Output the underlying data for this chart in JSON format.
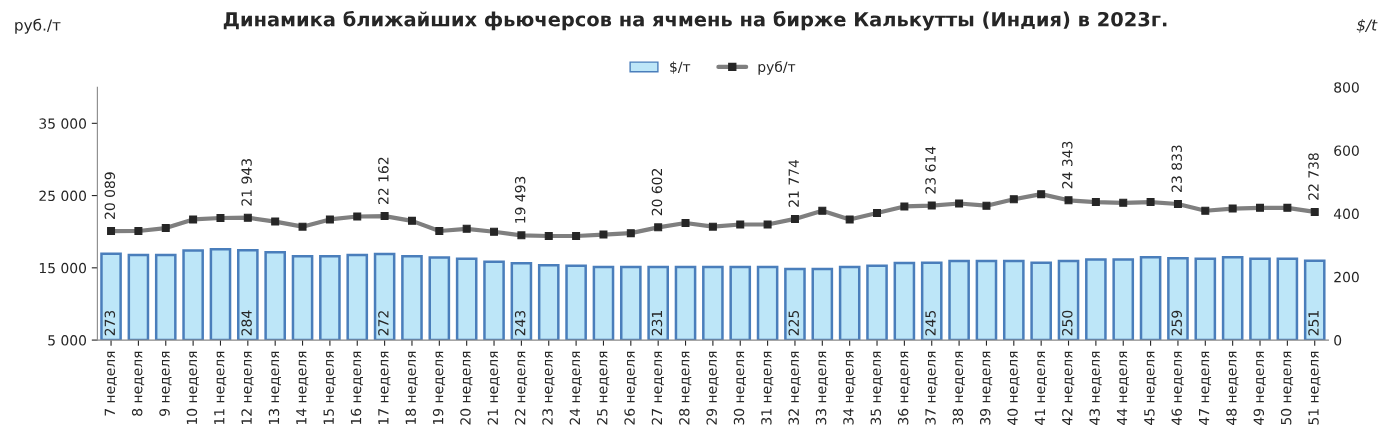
{
  "chart_data": {
    "type": "bar",
    "title": "Динамика ближайших фьючерсов на ячмень на бирже Калькутты (Индия) в 2023г.",
    "ylabel": "руб./т",
    "y2label": "$/t",
    "categories": [
      "7 неделя",
      "8 неделя",
      "9 неделя",
      "10 неделя",
      "11 неделя",
      "12 неделя",
      "13 неделя",
      "14 неделя",
      "15 неделя",
      "16 неделя",
      "17 неделя",
      "18 неделя",
      "19 неделя",
      "20 неделя",
      "21 неделя",
      "22 неделя",
      "23 неделя",
      "24 неделя",
      "25 неделя",
      "26 неделя",
      "27 неделя",
      "28 неделя",
      "29 неделя",
      "30 неделя",
      "31 неделя",
      "32 неделя",
      "33 неделя",
      "34 неделя",
      "35 неделя",
      "36 неделя",
      "37 неделя",
      "38 неделя",
      "39 неделя",
      "40 неделя",
      "41 неделя",
      "42 неделя",
      "43 неделя",
      "44 неделя",
      "45 неделя",
      "46 неделя",
      "47 неделя",
      "48 неделя",
      "49 неделя",
      "50 неделя",
      "51 неделя"
    ],
    "series": [
      {
        "name": "$/т",
        "axis": "y2",
        "color": "#bde6f8",
        "values": [
          273,
          269,
          269,
          283,
          287,
          284,
          278,
          265,
          265,
          269,
          272,
          265,
          261,
          257,
          248,
          243,
          237,
          235,
          231,
          231,
          231,
          231,
          231,
          231,
          231,
          225,
          225,
          231,
          235,
          244,
          245,
          250,
          250,
          250,
          245,
          250,
          255,
          255,
          262,
          259,
          257,
          262,
          257,
          257,
          251
        ],
        "value_labels": [
          "273",
          null,
          null,
          null,
          null,
          "284",
          null,
          null,
          null,
          null,
          "272",
          null,
          null,
          null,
          null,
          "243",
          null,
          null,
          null,
          null,
          "231",
          null,
          null,
          null,
          null,
          "225",
          null,
          null,
          null,
          null,
          "245",
          null,
          null,
          null,
          null,
          "250",
          null,
          null,
          null,
          "259",
          null,
          null,
          null,
          null,
          "251"
        ]
      },
      {
        "name": "руб/т",
        "type": "line",
        "color": "#7f7f7f",
        "values": [
          20089,
          20100,
          20500,
          21700,
          21900,
          21943,
          21400,
          20700,
          21700,
          22100,
          22162,
          21500,
          20100,
          20400,
          20000,
          19493,
          19400,
          19400,
          19600,
          19800,
          20602,
          21200,
          20700,
          21000,
          21000,
          21774,
          22900,
          21700,
          22600,
          23500,
          23614,
          23900,
          23600,
          24500,
          25200,
          24343,
          24100,
          24000,
          24100,
          23833,
          22900,
          23200,
          23300,
          23300,
          22738
        ],
        "value_labels": [
          "20 089",
          null,
          null,
          null,
          null,
          "21 943",
          null,
          null,
          null,
          null,
          "22 162",
          null,
          null,
          null,
          null,
          "19 493",
          null,
          null,
          null,
          null,
          "20 602",
          null,
          null,
          null,
          null,
          "21 774",
          null,
          null,
          null,
          null,
          "23 614",
          null,
          null,
          null,
          null,
          "24 343",
          null,
          null,
          null,
          "23 833",
          null,
          null,
          null,
          null,
          "22 738"
        ]
      }
    ],
    "marker": "square",
    "ylim": [
      5000,
      40000
    ],
    "yticks": [
      {
        "value": 5000,
        "label": "5 000"
      },
      {
        "value": 15000,
        "label": "15 000"
      },
      {
        "value": 25000,
        "label": "25 000"
      },
      {
        "value": 35000,
        "label": "35 000"
      }
    ],
    "y2lim": [
      0,
      800
    ],
    "y2ticks": [
      0,
      200,
      400,
      600,
      800
    ],
    "legend": "top",
    "grid": false
  }
}
